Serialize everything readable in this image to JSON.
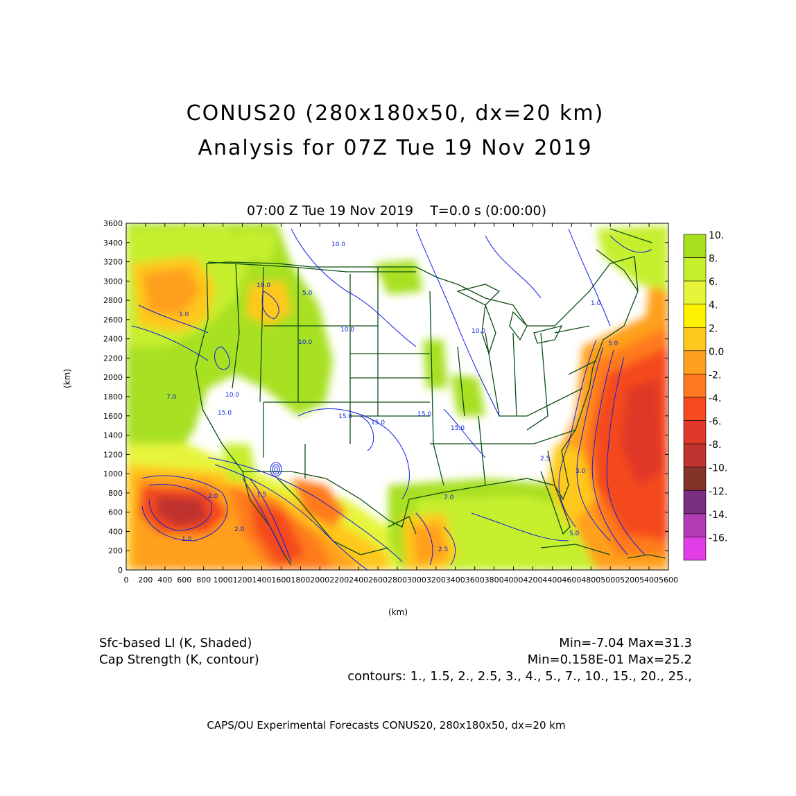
{
  "title_line1": "CONUS20 (280x180x50, dx=20 km)",
  "title_line2": "Analysis for 07Z Tue 19 Nov 2019",
  "subtitle": "07:00 Z Tue 19 Nov 2019    T=0.0 s (0:00:00)",
  "y_axis": {
    "label": "(km)",
    "ticks": [
      0,
      200,
      400,
      600,
      800,
      1000,
      1200,
      1400,
      1600,
      1800,
      2000,
      2200,
      2400,
      2600,
      2800,
      3000,
      3200,
      3400,
      3600
    ]
  },
  "x_axis": {
    "label": "(km)",
    "ticks": [
      0,
      200,
      400,
      600,
      800,
      1000,
      1200,
      1400,
      1600,
      1800,
      2000,
      2200,
      2400,
      2600,
      2800,
      3000,
      3200,
      3400,
      3600,
      3800,
      4000,
      4200,
      4400,
      4600,
      4800,
      5000,
      5200,
      5400,
      5600
    ]
  },
  "colorbar": {
    "labels": [
      "10.",
      "8.",
      "6.",
      "4.",
      "2.",
      "0.0",
      "-2.",
      "-4.",
      "-6.",
      "-8.",
      "-10.",
      "-12.",
      "-14.",
      "-16."
    ],
    "colors": [
      "#a8e020",
      "#c6ef2e",
      "#e6f53a",
      "#fff200",
      "#ffc81e",
      "#ffa01e",
      "#ff7a1e",
      "#f44a1e",
      "#e03828",
      "#c0332e",
      "#833327",
      "#7a2f80",
      "#b23ab4",
      "#e23ee8"
    ]
  },
  "field_shaded": {
    "name": "Sfc-based LI (K, Shaded)",
    "minmax": "Min=-7.04 Max=31.3"
  },
  "field_contour": {
    "name": "Cap Strength (K, contour)",
    "minmax": "Min=0.158E-01 Max=25.2"
  },
  "contours_line": "contours: 1., 1.5, 2., 2.5, 3., 4., 5., 7., 10., 15., 20., 25.,",
  "contour_labels": [
    "10.0",
    "10.0",
    "10.0",
    "10.0",
    "10.0",
    "10.0",
    "15.0",
    "15.0",
    "15.0",
    "15.0",
    "15.0",
    "7.0",
    "7.0",
    "5.0",
    "5.0",
    "5.0",
    "2.0",
    "2.0",
    "1.0",
    "1.0",
    "3.0",
    "2.5",
    "2.5",
    "1.5",
    "1.0"
  ],
  "credit": "CAPS/OU Experimental Forecasts  CONUS20, 280x180x50, dx=20 km",
  "colors": {
    "map_lines": "#0c4d14",
    "contours": "#0a1de6",
    "frame": "#000000"
  }
}
